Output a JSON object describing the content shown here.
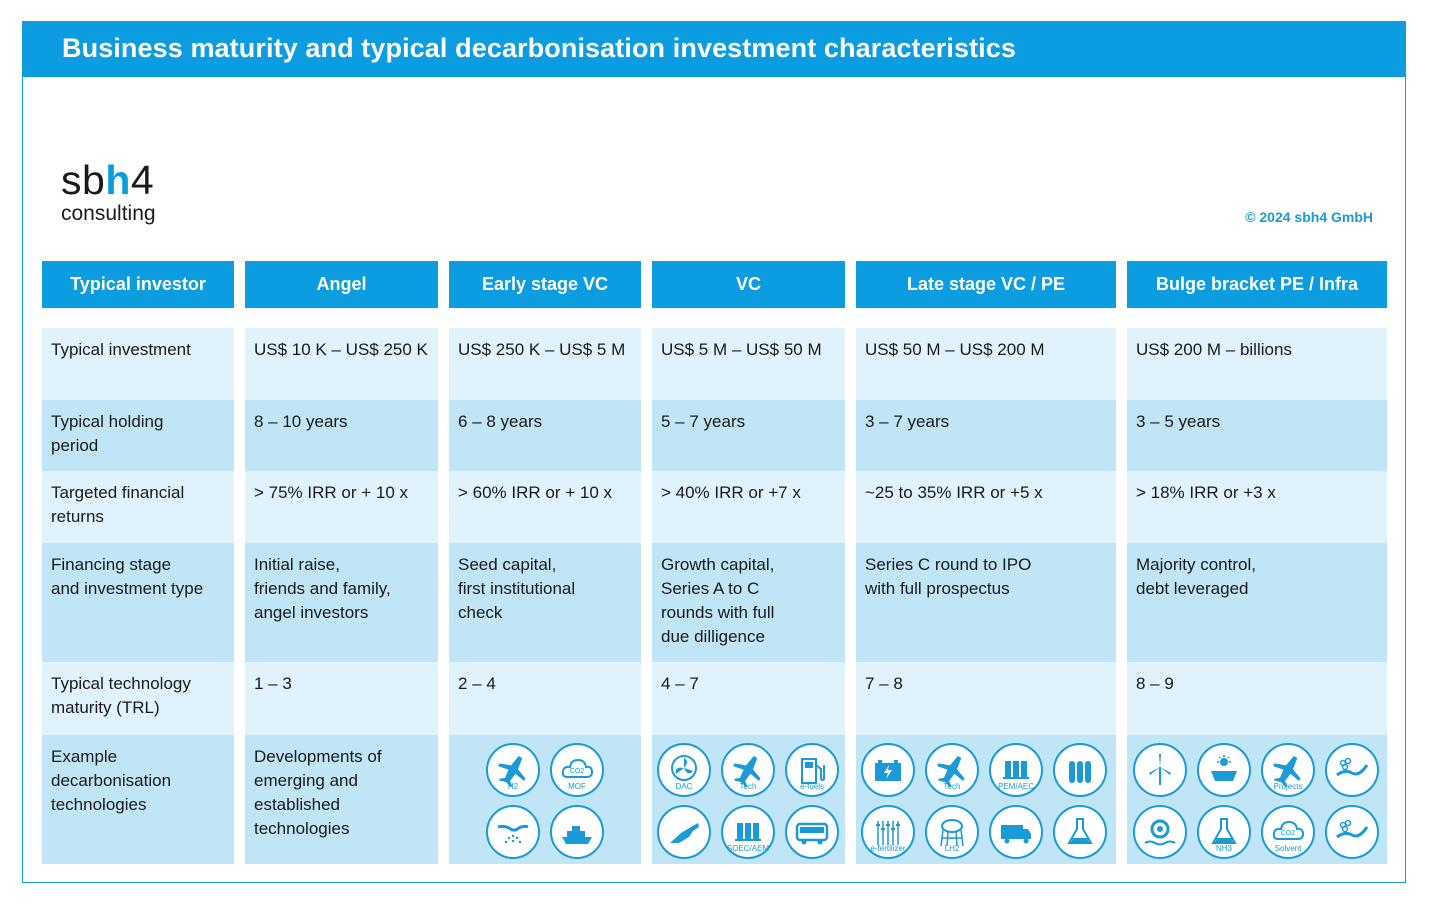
{
  "title": "Business maturity and typical decarbonisation investment characteristics",
  "logo": {
    "part1": "sb",
    "part2": "h",
    "part3": "4",
    "sub": "consulting"
  },
  "copyright": "© 2024 sbh4 GmbH",
  "columns": [
    "Typical investor",
    "Angel",
    "Early stage VC",
    "VC",
    "Late stage VC / PE",
    "Bulge bracket PE / Infra"
  ],
  "rows": [
    {
      "label": "Typical investment",
      "values": [
        "US$ 10 K – US$ 250 K",
        "US$ 250 K – US$ 5 M",
        "US$ 5  M – US$ 50 M",
        "US$ 50 M – US$ 200 M",
        "US$ 200 M – billions"
      ]
    },
    {
      "label": "Typical holding\nperiod",
      "values": [
        "8 – 10 years",
        "6 – 8 years",
        "5 – 7 years",
        "3 – 7 years",
        "3 – 5 years"
      ]
    },
    {
      "label": "Targeted financial\nreturns",
      "values": [
        "> 75% IRR or + 10 x",
        "> 60% IRR or + 10 x",
        "> 40% IRR or +7 x",
        "~25 to 35% IRR or +5 x",
        "> 18% IRR or +3 x"
      ]
    },
    {
      "label": "Financing stage\nand investment type",
      "values": [
        "Initial raise,\nfriends and family,\nangel investors",
        "Seed capital,\nfirst institutional\ncheck",
        "Growth capital,\nSeries A to C\nrounds with full\ndue dilligence",
        "Series C round to IPO\nwith full prospectus",
        "Majority control,\ndebt leveraged"
      ]
    },
    {
      "label": "Typical technology\nmaturity (TRL)",
      "values": [
        "1 – 3",
        "2 – 4",
        "4 – 7",
        "7 – 8",
        "8 – 9"
      ]
    },
    {
      "label": "Example\ndecarbonisation\ntechnologies",
      "values": [
        "Developments of\nemerging and\nestablished\ntechnologies",
        "",
        "",
        "",
        ""
      ]
    }
  ],
  "icons": {
    "early_vc": [
      {
        "name": "aircraft-h2-icon",
        "label": "H2"
      },
      {
        "name": "cloud-co2-mof-icon",
        "label": "MOF"
      },
      {
        "name": "spray-nozzle-icon",
        "label": ""
      },
      {
        "name": "ship-icon",
        "label": ""
      }
    ],
    "vc": [
      {
        "name": "fan-dac-icon",
        "label": "DAC"
      },
      {
        "name": "aircraft-tech-icon",
        "label": "Tech"
      },
      {
        "name": "fuel-pump-icon",
        "label": "e-fuels"
      },
      {
        "name": "fuel-nozzle-icon",
        "label": ""
      },
      {
        "name": "electrolyser-soec-icon",
        "label": "SOEC/AEM"
      },
      {
        "name": "bus-icon",
        "label": ""
      }
    ],
    "late_vc": [
      {
        "name": "battery-icon",
        "label": ""
      },
      {
        "name": "aircraft-tech-icon",
        "label": "Tech"
      },
      {
        "name": "electrolyser-pem-icon",
        "label": "PEM/AEC"
      },
      {
        "name": "gas-cylinders-icon",
        "label": ""
      },
      {
        "name": "crops-fertilizer-icon",
        "label": "e-fertilizer"
      },
      {
        "name": "water-tower-lh2-icon",
        "label": "LH2"
      },
      {
        "name": "truck-icon",
        "label": ""
      },
      {
        "name": "flask-icon",
        "label": ""
      }
    ],
    "bulge": [
      {
        "name": "wind-turbine-icon",
        "label": ""
      },
      {
        "name": "solar-panel-icon",
        "label": ""
      },
      {
        "name": "aircraft-projects-icon",
        "label": "Projects"
      },
      {
        "name": "pipeline-molecules-icon",
        "label": ""
      },
      {
        "name": "hydro-turbine-icon",
        "label": ""
      },
      {
        "name": "flask-nh3-icon",
        "label": "NH3"
      },
      {
        "name": "cloud-co2-solvent-icon",
        "label": "Solvent"
      },
      {
        "name": "pipeline-transport-icon",
        "label": ""
      }
    ]
  },
  "colors": {
    "accent": "#0b9de0",
    "light_row": "#e0f2fb",
    "dark_row": "#bfe5f6"
  }
}
